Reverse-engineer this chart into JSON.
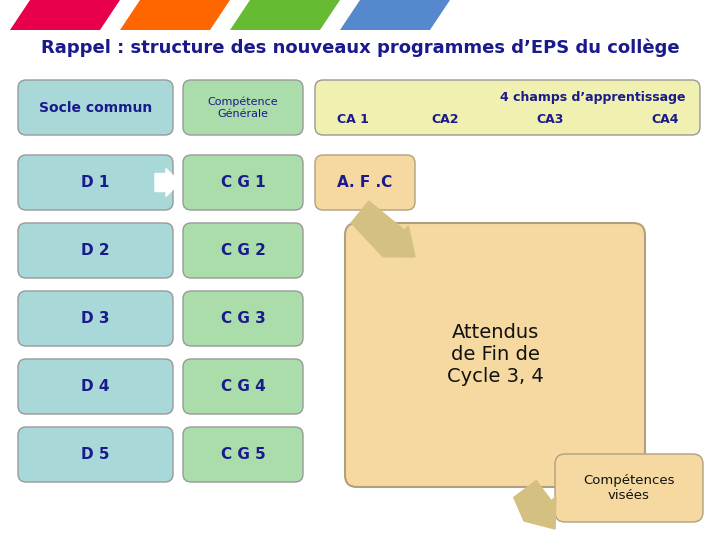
{
  "title": "Rappel : structure des nouveaux programmes d’EPS du collège",
  "bg_color": "#ffffff",
  "stripe_colors": [
    "#e8004a",
    "#ff6600",
    "#66bb33",
    "#5588cc"
  ],
  "teal_color": "#a8d8d8",
  "green_color": "#aaddaa",
  "yellow_color": "#f0f0b0",
  "peach_color": "#f5d9a0",
  "peach_border": "#b0a080",
  "text_dark": "#1a1a8c",
  "text_black": "#111111",
  "d_labels": [
    "D 1",
    "D 2",
    "D 3",
    "D 4",
    "D 5"
  ],
  "cg_labels": [
    "C G 1",
    "C G 2",
    "C G 3",
    "C G 4",
    "C G 5"
  ],
  "ca_labels": [
    "CA 1",
    "CA2",
    "CA3",
    "CA4"
  ],
  "ca_header": "4 champs d’apprentissage"
}
